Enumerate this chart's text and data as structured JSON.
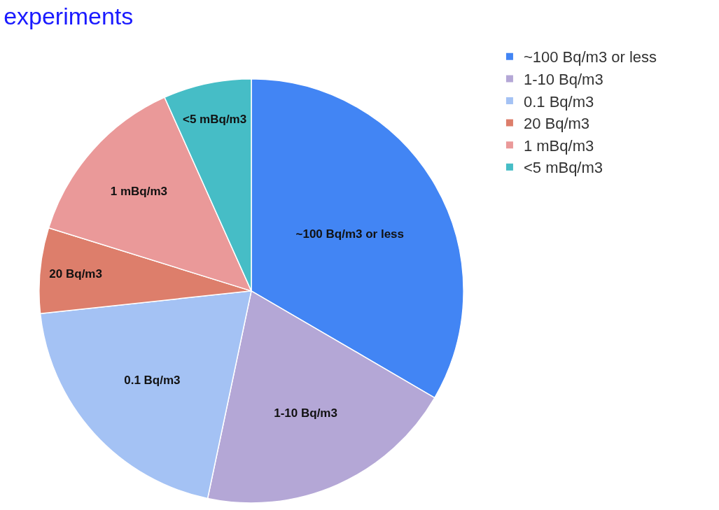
{
  "chart_data": {
    "type": "pie",
    "title": "experiments",
    "categories": [
      "~100 Bq/m3 or less",
      "1-10 Bq/m3",
      "0.1 Bq/m3",
      "20 Bq/m3",
      "1 mBq/m3",
      "<5 mBq/m3"
    ],
    "values": [
      33.4,
      19.9,
      20,
      6.5,
      13.5,
      6.7
    ],
    "colors": [
      "#4285f4",
      "#b4a7d6",
      "#a4c2f4",
      "#dd7e6b",
      "#ea9999",
      "#46bdc6"
    ],
    "legend": "top right"
  }
}
